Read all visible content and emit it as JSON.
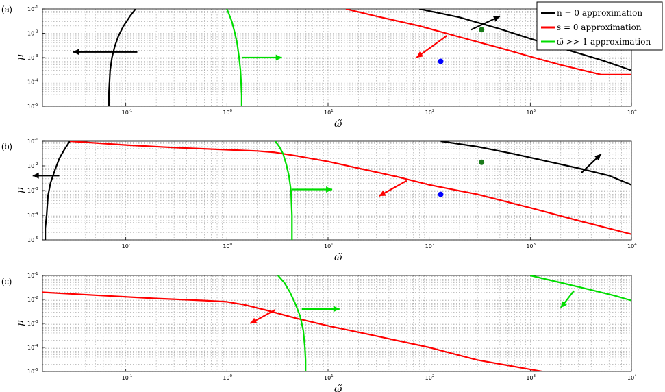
{
  "colors": {
    "black": "#000000",
    "red": "#ff0000",
    "green": "#00dd00",
    "blue": "#0000ff",
    "darkgreen": "#1a7a1a"
  },
  "legend": [
    {
      "label": "n = 0 approximation",
      "color": "#000000"
    },
    {
      "label": "s = 0 approximation",
      "color": "#ff0000"
    },
    {
      "label": "ω̃ >> 1 approximation",
      "color": "#00dd00"
    }
  ],
  "chart_data": [
    {
      "type": "line",
      "panel_label": "(a)",
      "xlabel": "ω̃",
      "ylabel": "μ",
      "xscale": "log",
      "yscale": "log",
      "xlim": [
        0.015,
        10000
      ],
      "ylim": [
        1e-05,
        0.1
      ],
      "grid": true,
      "xticks": [
        {
          "b": "10",
          "e": "-1",
          "v": 0.1
        },
        {
          "b": "10",
          "e": "0",
          "v": 1
        },
        {
          "b": "10",
          "e": "1",
          "v": 10
        },
        {
          "b": "10",
          "e": "2",
          "v": 100
        },
        {
          "b": "10",
          "e": "3",
          "v": 1000
        },
        {
          "b": "10",
          "e": "4",
          "v": 10000
        }
      ],
      "yticks": [
        {
          "b": "10",
          "e": "-1",
          "v": 0.1
        },
        {
          "b": "10",
          "e": "-2",
          "v": 0.01
        },
        {
          "b": "10",
          "e": "-3",
          "v": 0.001
        },
        {
          "b": "10",
          "e": "-4",
          "v": 0.0001
        },
        {
          "b": "10",
          "e": "-5",
          "v": 1e-05
        }
      ],
      "series": [
        {
          "color": "black",
          "x": [
            0.125,
            0.11,
            0.095,
            0.085,
            0.078,
            0.073,
            0.07,
            0.069,
            0.068,
            0.068
          ],
          "y": [
            0.1,
            0.05,
            0.02,
            0.008,
            0.003,
            0.001,
            0.0003,
            0.0001,
            3e-05,
            1e-05
          ]
        },
        {
          "color": "black",
          "x": [
            80,
            200,
            500,
            1000,
            2000,
            5000,
            10000
          ],
          "y": [
            0.1,
            0.045,
            0.015,
            0.006,
            0.0025,
            0.0008,
            0.0003
          ]
        },
        {
          "color": "red",
          "x": [
            15,
            30,
            80,
            200,
            500,
            1000,
            2000,
            5000,
            10000
          ],
          "y": [
            0.1,
            0.05,
            0.02,
            0.007,
            0.0025,
            0.0011,
            0.0005,
            0.0002,
            0.0002
          ]
        },
        {
          "color": "green",
          "x": [
            1.0,
            1.05,
            1.12,
            1.2,
            1.26,
            1.32,
            1.36,
            1.38,
            1.4,
            1.4
          ],
          "y": [
            0.1,
            0.06,
            0.03,
            0.01,
            0.004,
            0.001,
            0.0003,
            0.0001,
            3e-05,
            1e-05
          ]
        }
      ],
      "arrows": [
        {
          "color": "black",
          "from": [
            0.13,
            0.0017
          ],
          "to": [
            0.03,
            0.0017
          ]
        },
        {
          "color": "green",
          "from": [
            1.4,
            0.001
          ],
          "to": [
            3.5,
            0.001
          ]
        },
        {
          "color": "red",
          "from": [
            150,
            0.008
          ],
          "to": [
            75,
            0.001
          ]
        },
        {
          "color": "black",
          "from": [
            260,
            0.014
          ],
          "to": [
            500,
            0.05
          ]
        }
      ],
      "points": [
        {
          "color": "blue",
          "x": 130,
          "y": 0.0007
        },
        {
          "color": "darkgreen",
          "x": 330,
          "y": 0.014
        }
      ]
    },
    {
      "type": "line",
      "panel_label": "(b)",
      "xlabel": "ω̃",
      "ylabel": "μ",
      "xscale": "log",
      "yscale": "log",
      "xlim": [
        0.015,
        10000
      ],
      "ylim": [
        1e-05,
        0.1
      ],
      "grid": true,
      "xticks": [
        {
          "b": "10",
          "e": "-1",
          "v": 0.1
        },
        {
          "b": "10",
          "e": "0",
          "v": 1
        },
        {
          "b": "10",
          "e": "1",
          "v": 10
        },
        {
          "b": "10",
          "e": "2",
          "v": 100
        },
        {
          "b": "10",
          "e": "3",
          "v": 1000
        },
        {
          "b": "10",
          "e": "4",
          "v": 10000
        }
      ],
      "yticks": [
        {
          "b": "10",
          "e": "-1",
          "v": 0.1
        },
        {
          "b": "10",
          "e": "-2",
          "v": 0.01
        },
        {
          "b": "10",
          "e": "-3",
          "v": 0.001
        },
        {
          "b": "10",
          "e": "-4",
          "v": 0.0001
        },
        {
          "b": "10",
          "e": "-5",
          "v": 1e-05
        }
      ],
      "series": [
        {
          "color": "black",
          "x": [
            0.028,
            0.025,
            0.022,
            0.02,
            0.018,
            0.017,
            0.0165,
            0.016,
            0.016
          ],
          "y": [
            0.1,
            0.05,
            0.02,
            0.007,
            0.002,
            0.0006,
            0.0001,
            3e-05,
            1e-05
          ]
        },
        {
          "color": "black",
          "x": [
            130,
            300,
            700,
            1500,
            3000,
            6000,
            10000
          ],
          "y": [
            0.1,
            0.06,
            0.03,
            0.015,
            0.008,
            0.004,
            0.0017
          ]
        },
        {
          "color": "red",
          "x": [
            0.028,
            0.1,
            0.3,
            1,
            2,
            3,
            5,
            10,
            20,
            50,
            100,
            300,
            1000,
            3000,
            10000
          ],
          "y": [
            0.1,
            0.07,
            0.055,
            0.045,
            0.04,
            0.035,
            0.025,
            0.015,
            0.008,
            0.0035,
            0.0017,
            0.0007,
            0.0002,
            6e-05,
            1.7e-05
          ]
        },
        {
          "color": "green",
          "x": [
            3.0,
            3.3,
            3.6,
            3.9,
            4.1,
            4.3,
            4.35,
            4.4,
            4.4,
            4.4
          ],
          "y": [
            0.1,
            0.06,
            0.03,
            0.01,
            0.004,
            0.001,
            0.0003,
            0.0001,
            3e-05,
            1e-05
          ]
        }
      ],
      "arrows": [
        {
          "color": "black",
          "from": [
            0.022,
            0.004
          ],
          "to": [
            0.012,
            0.004
          ]
        },
        {
          "color": "green",
          "from": [
            4.4,
            0.0011
          ],
          "to": [
            11,
            0.0011
          ]
        },
        {
          "color": "red",
          "from": [
            60,
            0.0025
          ],
          "to": [
            32,
            0.0006
          ]
        },
        {
          "color": "black",
          "from": [
            3200,
            0.0052
          ],
          "to": [
            5000,
            0.03
          ]
        }
      ],
      "points": [
        {
          "color": "blue",
          "x": 130,
          "y": 0.0007
        },
        {
          "color": "darkgreen",
          "x": 330,
          "y": 0.014
        }
      ]
    },
    {
      "type": "line",
      "panel_label": "(c)",
      "xlabel": "ω̃",
      "ylabel": "μ",
      "xscale": "log",
      "yscale": "log",
      "xlim": [
        0.015,
        10000
      ],
      "ylim": [
        1e-05,
        0.1
      ],
      "grid": true,
      "xticks": [
        {
          "b": "10",
          "e": "-1",
          "v": 0.1
        },
        {
          "b": "10",
          "e": "0",
          "v": 1
        },
        {
          "b": "10",
          "e": "1",
          "v": 10
        },
        {
          "b": "10",
          "e": "2",
          "v": 100
        },
        {
          "b": "10",
          "e": "3",
          "v": 1000
        },
        {
          "b": "10",
          "e": "4",
          "v": 10000
        }
      ],
      "yticks": [
        {
          "b": "10",
          "e": "-1",
          "v": 0.1
        },
        {
          "b": "10",
          "e": "-2",
          "v": 0.01
        },
        {
          "b": "10",
          "e": "-3",
          "v": 0.001
        },
        {
          "b": "10",
          "e": "-4",
          "v": 0.0001
        },
        {
          "b": "10",
          "e": "-5",
          "v": 1e-05
        }
      ],
      "series": [
        {
          "color": "red",
          "x": [
            0.015,
            0.05,
            0.2,
            0.6,
            1,
            1.5,
            2.5,
            5,
            10,
            30,
            100,
            300,
            1300
          ],
          "y": [
            0.02,
            0.015,
            0.011,
            0.009,
            0.008,
            0.006,
            0.0035,
            0.0016,
            0.0008,
            0.0003,
            0.0001,
            3e-05,
            1e-05
          ]
        },
        {
          "color": "green",
          "x": [
            3.2,
            3.7,
            4.2,
            4.8,
            5.3,
            5.7,
            5.9,
            6.0,
            6.0
          ],
          "y": [
            0.1,
            0.05,
            0.02,
            0.006,
            0.002,
            0.0005,
            0.0001,
            3e-05,
            1e-05
          ]
        },
        {
          "color": "green",
          "x": [
            1000,
            2000,
            4000,
            7000,
            10000
          ],
          "y": [
            0.1,
            0.05,
            0.025,
            0.014,
            0.009
          ]
        }
      ],
      "arrows": [
        {
          "color": "red",
          "from": [
            3,
            0.0037
          ],
          "to": [
            1.7,
            0.001
          ]
        },
        {
          "color": "green",
          "from": [
            5.5,
            0.004
          ],
          "to": [
            13,
            0.004
          ]
        },
        {
          "color": "green",
          "from": [
            2700,
            0.023
          ],
          "to": [
            2000,
            0.0045
          ]
        }
      ],
      "points": []
    }
  ]
}
